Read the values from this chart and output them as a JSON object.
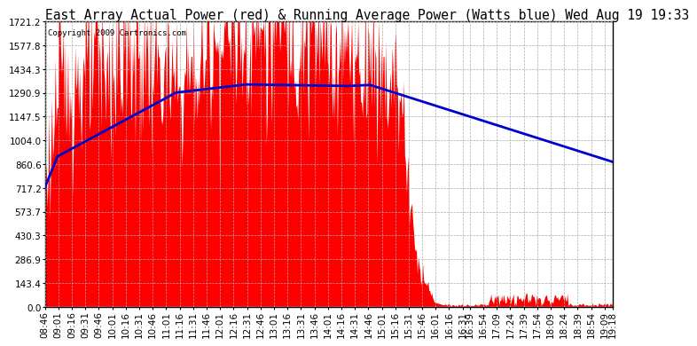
{
  "title": "East Array Actual Power (red) & Running Average Power (Watts blue) Wed Aug 19 19:33",
  "copyright": "Copyright 2009 Cartronics.com",
  "ylabel_values": [
    0.0,
    143.4,
    286.9,
    430.3,
    573.7,
    717.2,
    860.6,
    1004.0,
    1147.5,
    1290.9,
    1434.3,
    1577.8,
    1721.2
  ],
  "ymax": 1721.2,
  "ymin": 0.0,
  "bar_color": "#ff0000",
  "avg_color": "#0000cc",
  "background_color": "#ffffff",
  "grid_color": "#aaaaaa",
  "title_fontsize": 10.5,
  "tick_fontsize": 7.5,
  "tick_labels": [
    "08:46",
    "09:01",
    "09:16",
    "09:31",
    "09:46",
    "10:01",
    "10:16",
    "10:31",
    "10:46",
    "11:01",
    "11:16",
    "11:31",
    "11:46",
    "12:01",
    "12:16",
    "12:31",
    "12:46",
    "13:01",
    "13:16",
    "13:31",
    "13:46",
    "14:01",
    "14:16",
    "14:31",
    "14:46",
    "15:01",
    "15:16",
    "15:31",
    "15:46",
    "16:01",
    "16:16",
    "16:31",
    "16:39",
    "16:54",
    "17:09",
    "17:24",
    "17:39",
    "17:54",
    "18:09",
    "18:24",
    "18:39",
    "18:54",
    "19:09",
    "19:18"
  ]
}
